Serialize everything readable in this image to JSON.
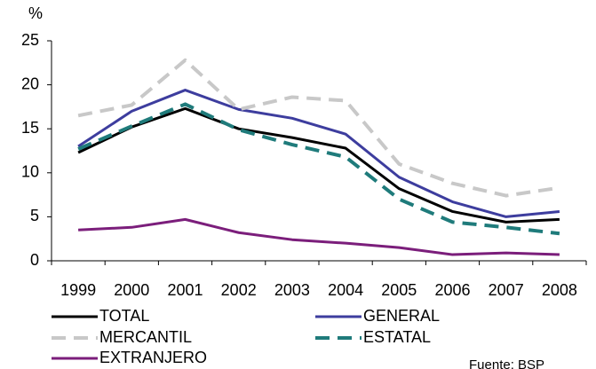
{
  "chart_data": {
    "type": "line",
    "y_unit": "%",
    "source": "Fuente: BSP",
    "categories": [
      "1999",
      "2000",
      "2001",
      "2002",
      "2003",
      "2004",
      "2005",
      "2006",
      "2007",
      "2008"
    ],
    "series": [
      {
        "name": "TOTAL",
        "color": "#000000",
        "style": "solid",
        "values": [
          12.3,
          15.2,
          17.3,
          15.0,
          14.0,
          12.8,
          8.2,
          5.6,
          4.4,
          4.7
        ]
      },
      {
        "name": "GENERAL",
        "color": "#3d3d9e",
        "style": "solid",
        "values": [
          13.0,
          17.0,
          19.4,
          17.2,
          16.2,
          14.4,
          9.5,
          6.7,
          5.0,
          5.6
        ]
      },
      {
        "name": "MERCANTIL",
        "color": "#c8c8c8",
        "style": "dashed",
        "values": [
          16.5,
          17.7,
          22.8,
          17.2,
          18.6,
          18.2,
          11.0,
          8.8,
          7.4,
          8.3
        ]
      },
      {
        "name": "ESTATAL",
        "color": "#1f7b7b",
        "style": "dashed",
        "values": [
          12.7,
          15.3,
          17.8,
          14.9,
          13.2,
          11.8,
          7.0,
          4.4,
          3.8,
          3.1
        ]
      },
      {
        "name": "EXTRANJERO",
        "color": "#7b1e7b",
        "style": "solid",
        "values": [
          3.5,
          3.8,
          4.7,
          3.2,
          2.4,
          2.0,
          1.5,
          0.7,
          0.9,
          0.7
        ]
      }
    ],
    "ylim": [
      0,
      25
    ],
    "yticks": [
      0,
      5,
      10,
      15,
      20,
      25
    ],
    "grid": false
  }
}
